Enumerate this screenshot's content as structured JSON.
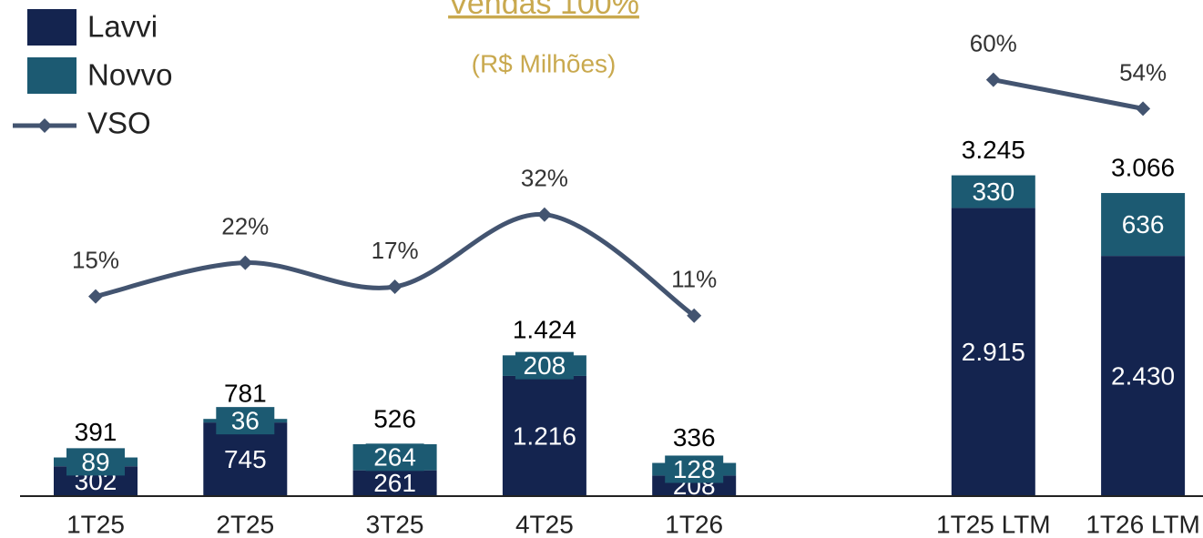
{
  "chart_data": {
    "type": "bar",
    "title": "Vendas 100%",
    "subtitle": "(R$ Milhões)",
    "categories": [
      "1T25",
      "2T25",
      "3T25",
      "4T25",
      "1T26",
      null,
      "1T25 LTM",
      "1T26 LTM"
    ],
    "stacked": true,
    "ylim": [
      0,
      5000
    ],
    "y2lim": [
      -26.5,
      76.2
    ],
    "legend": "top-left",
    "series": [
      {
        "name": "Lavvi",
        "color": "#14244f",
        "values": [
          302,
          745,
          261,
          1216,
          208,
          null,
          2915,
          2430
        ],
        "value_labels": [
          "302",
          "745",
          "261",
          "1.216",
          "208",
          null,
          "2.915",
          "2.430"
        ]
      },
      {
        "name": "Novvo",
        "color": "#1c5a72",
        "values": [
          89,
          36,
          264,
          208,
          128,
          null,
          330,
          636
        ]
      },
      {
        "name": "VSO",
        "type": "line",
        "axis": "y2",
        "color": "#435470",
        "values": [
          15,
          22,
          17,
          32,
          11,
          null,
          60,
          54
        ],
        "value_labels": [
          "15%",
          "22%",
          "17%",
          "32%",
          "11%",
          null,
          "60%",
          "54%"
        ]
      }
    ],
    "totals": {
      "values": [
        391,
        781,
        526,
        1424,
        336,
        null,
        3245,
        3066
      ],
      "value_labels": [
        "391",
        "781",
        "526",
        "1.424",
        "336",
        null,
        "3.245",
        "3.066"
      ]
    }
  }
}
